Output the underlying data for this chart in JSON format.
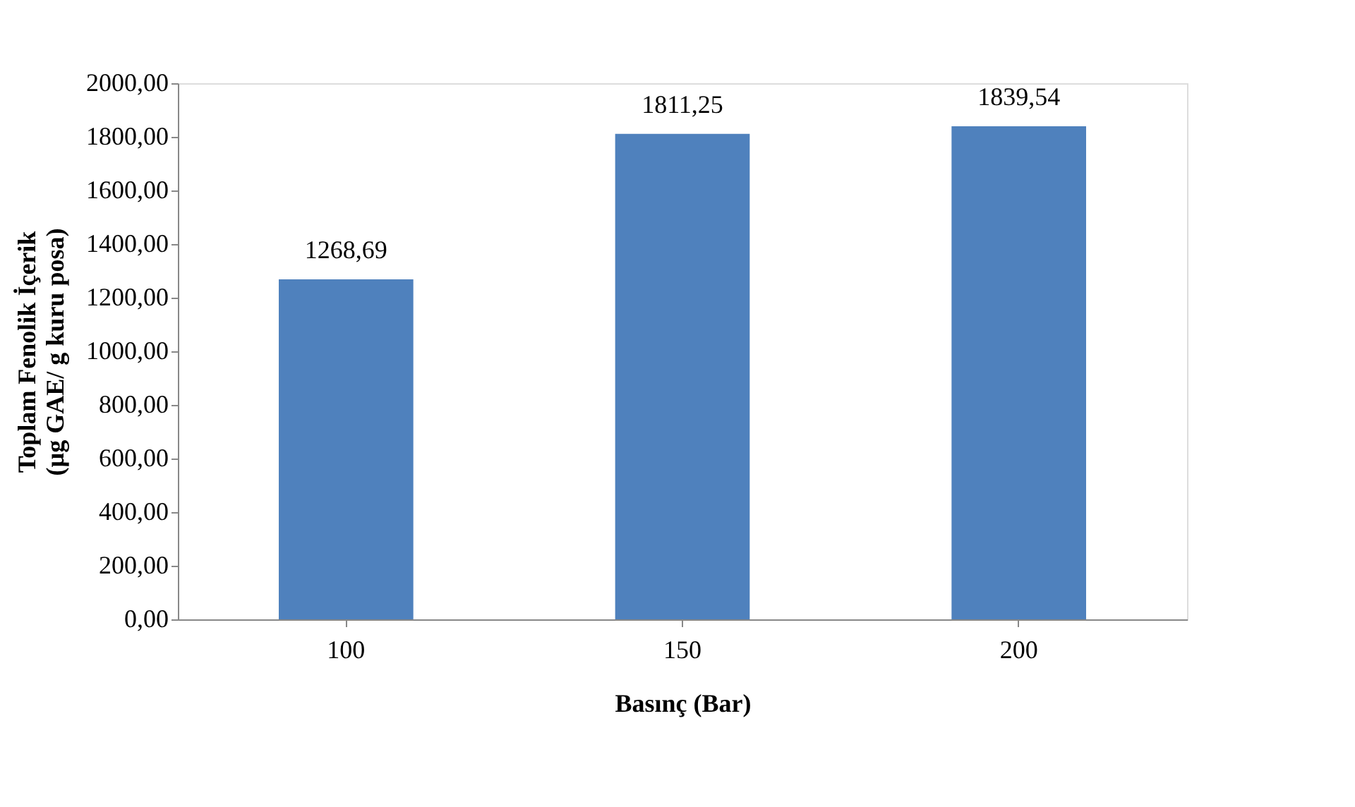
{
  "chart_data": {
    "type": "bar",
    "xlabel": "Basınç (Bar)",
    "ylabel": "Toplam Fenolik İçerik\n(µg GAE/ g kuru posa)",
    "categories": [
      "100",
      "150",
      "200"
    ],
    "values": [
      1268.69,
      1811.25,
      1839.54
    ],
    "value_labels": [
      "1268,69",
      "1811,25",
      "1839,54"
    ],
    "color": "#4f81bd",
    "ylim": [
      0,
      2000
    ],
    "yticks": [
      {
        "value": 0,
        "label": "0,00"
      },
      {
        "value": 200,
        "label": "200,00"
      },
      {
        "value": 400,
        "label": "400,00"
      },
      {
        "value": 600,
        "label": "600,00"
      },
      {
        "value": 800,
        "label": "800,00"
      },
      {
        "value": 1000,
        "label": "1000,00"
      },
      {
        "value": 1200,
        "label": "1200,00"
      },
      {
        "value": 1400,
        "label": "1400,00"
      },
      {
        "value": 1600,
        "label": "1600,00"
      },
      {
        "value": 1800,
        "label": "1800,00"
      },
      {
        "value": 2000,
        "label": "2000,00"
      }
    ],
    "grid": false
  }
}
